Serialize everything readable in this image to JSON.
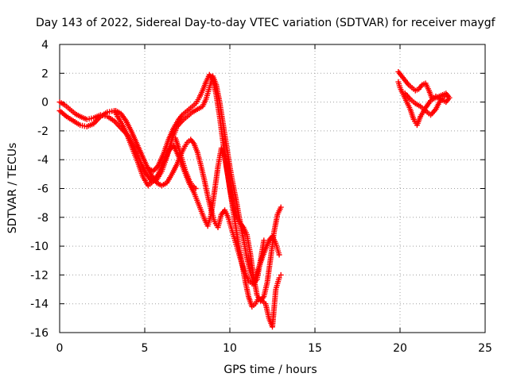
{
  "chart_data": {
    "type": "scatter",
    "title": "Day 143 of 2022, Sidereal Day-to-day VTEC variation (SDTVAR) for receiver maygf",
    "xlabel": "GPS time / hours",
    "ylabel": "SDTVAR / TECUs",
    "xlim": [
      0,
      25
    ],
    "ylim": [
      -16,
      4
    ],
    "xticks": [
      0,
      5,
      10,
      15,
      20,
      25
    ],
    "yticks": [
      -16,
      -14,
      -12,
      -10,
      -8,
      -6,
      -4,
      -2,
      0,
      2,
      4
    ],
    "grid": true,
    "marker": "plus",
    "series": [
      {
        "color": "#ff0000",
        "segments": [
          {
            "x": [
              0.0,
              0.3,
              0.6,
              0.9,
              1.2,
              1.6,
              2.0,
              2.4,
              2.8,
              3.2,
              3.6,
              4.0,
              4.4,
              4.8,
              5.1,
              5.4,
              5.7,
              6.0,
              6.3,
              6.6,
              6.9,
              7.2,
              7.5,
              7.8,
              8.1,
              8.4,
              8.6,
              8.8,
              9.0,
              9.2,
              9.4,
              9.6,
              9.8,
              10.0,
              10.2,
              10.4,
              10.6,
              10.8,
              11.0,
              11.2,
              11.4,
              11.6,
              11.8,
              12.0
            ],
            "y": [
              0.0,
              -0.2,
              -0.5,
              -0.8,
              -1.0,
              -1.2,
              -1.1,
              -0.9,
              -1.0,
              -1.3,
              -1.8,
              -2.3,
              -3.2,
              -4.3,
              -5.0,
              -5.5,
              -5.4,
              -4.8,
              -3.8,
              -2.6,
              -1.7,
              -1.3,
              -1.0,
              -0.7,
              -0.5,
              -0.3,
              0.2,
              1.0,
              1.8,
              1.2,
              0.0,
              -1.5,
              -3.0,
              -4.5,
              -5.8,
              -7.0,
              -8.3,
              -9.5,
              -10.8,
              -11.8,
              -12.6,
              -12.3,
              -11.0,
              -9.6
            ]
          },
          {
            "x": [
              0.0,
              0.4,
              0.8,
              1.2,
              1.6,
              2.0,
              2.4,
              2.8,
              3.2,
              3.4,
              3.7,
              4.0,
              4.3,
              4.6,
              4.9,
              5.2,
              5.5,
              5.8,
              6.1,
              6.4,
              6.7,
              7.0,
              7.3,
              7.6,
              7.9,
              8.2,
              8.5,
              8.7,
              8.9,
              9.1,
              9.3,
              9.5,
              9.7,
              9.9,
              10.1,
              10.3,
              10.5,
              10.7,
              10.9,
              11.1,
              11.3,
              11.5,
              11.7,
              11.9,
              12.1,
              12.3,
              12.5,
              12.7,
              12.9,
              13.0
            ],
            "y": [
              -0.6,
              -1.0,
              -1.3,
              -1.6,
              -1.7,
              -1.5,
              -1.0,
              -0.7,
              -0.6,
              -1.0,
              -1.6,
              -2.4,
              -3.3,
              -4.2,
              -5.2,
              -5.8,
              -5.5,
              -5.0,
              -4.2,
              -3.4,
              -3.0,
              -3.8,
              -4.7,
              -5.6,
              -6.3,
              -7.2,
              -8.1,
              -8.6,
              -7.8,
              -6.2,
              -4.5,
              -3.2,
              -3.8,
              -5.2,
              -6.8,
              -8.3,
              -9.8,
              -11.1,
              -12.4,
              -13.5,
              -14.2,
              -14.0,
              -13.6,
              -13.8,
              -14.0,
              -15.0,
              -15.6,
              -13.0,
              -12.2,
              -12.0
            ]
          },
          {
            "x": [
              3.3,
              3.6,
              3.9,
              4.2,
              4.5,
              4.8,
              5.1,
              5.4,
              5.7,
              6.0,
              6.3,
              6.6,
              6.9,
              7.1,
              7.3,
              7.5,
              7.7,
              7.9,
              8.1,
              8.3,
              8.5,
              8.7,
              8.9,
              9.1,
              9.3,
              9.5,
              9.7,
              9.9,
              10.1,
              10.3,
              10.5,
              10.7,
              10.9,
              11.1,
              11.3,
              11.5,
              11.7,
              11.9,
              12.1,
              12.3,
              12.5,
              12.7,
              12.9
            ],
            "y": [
              -0.6,
              -0.8,
              -1.3,
              -2.0,
              -2.8,
              -3.6,
              -4.4,
              -5.1,
              -5.6,
              -5.8,
              -5.6,
              -5.0,
              -4.3,
              -3.7,
              -3.2,
              -2.8,
              -2.6,
              -2.9,
              -3.5,
              -4.4,
              -5.4,
              -6.5,
              -7.5,
              -8.3,
              -8.7,
              -7.8,
              -7.5,
              -8.0,
              -8.8,
              -9.6,
              -10.4,
              -11.2,
              -11.9,
              -12.4,
              -12.6,
              -12.2,
              -11.5,
              -10.8,
              -10.2,
              -9.6,
              -9.3,
              -9.8,
              -10.6
            ]
          },
          {
            "x": [
              5.2,
              5.5,
              5.8,
              6.1,
              6.4,
              6.7,
              7.0,
              7.2,
              7.4,
              7.6,
              7.8,
              8.0,
              8.2,
              8.4,
              8.6,
              8.8,
              9.0,
              9.2,
              9.4,
              9.6,
              9.8,
              10.0,
              10.2,
              10.4,
              10.6,
              10.8,
              11.0,
              11.2,
              11.4,
              11.6,
              11.8,
              12.0,
              12.2,
              12.4,
              12.6,
              12.8,
              13.0
            ],
            "y": [
              -4.6,
              -4.8,
              -4.4,
              -3.6,
              -2.6,
              -1.8,
              -1.2,
              -0.9,
              -0.7,
              -0.5,
              -0.3,
              -0.1,
              0.3,
              0.8,
              1.4,
              1.9,
              1.6,
              0.5,
              -1.0,
              -2.8,
              -4.5,
              -6.0,
              -7.2,
              -8.0,
              -8.4,
              -8.7,
              -9.2,
              -10.5,
              -12.2,
              -13.4,
              -13.8,
              -13.5,
              -12.5,
              -10.8,
              -9.0,
              -7.8,
              -7.3
            ]
          },
          {
            "x": [
              6.8,
              7.0,
              7.2,
              7.4,
              7.6,
              7.8,
              8.0
            ],
            "y": [
              -2.5,
              -3.2,
              -4.0,
              -4.8,
              -5.4,
              -5.8,
              -6.0
            ]
          },
          {
            "x": [
              19.9,
              20.1,
              20.3,
              20.5,
              20.7,
              20.9,
              21.1,
              21.3,
              21.5,
              21.7,
              21.9,
              22.1,
              22.3,
              22.5,
              22.7,
              22.9,
              22.7,
              22.4,
              22.1,
              21.8,
              21.5,
              21.2,
              21.0,
              20.8,
              20.6,
              20.4,
              20.2,
              20.0,
              19.9
            ],
            "y": [
              2.1,
              1.8,
              1.5,
              1.2,
              1.0,
              0.8,
              0.9,
              1.2,
              1.3,
              0.8,
              0.2,
              0.3,
              0.4,
              0.5,
              0.6,
              0.3,
              0.0,
              0.2,
              0.4,
              0.1,
              -0.4,
              -1.0,
              -1.6,
              -1.2,
              -0.5,
              0.0,
              0.5,
              1.0,
              1.4
            ]
          },
          {
            "x": [
              20.3,
              20.6,
              20.9,
              21.2,
              21.5,
              21.8,
              22.1,
              22.4,
              22.7
            ],
            "y": [
              0.6,
              0.2,
              -0.1,
              -0.3,
              -0.6,
              -0.9,
              -0.5,
              0.2,
              0.5
            ]
          }
        ]
      }
    ]
  }
}
